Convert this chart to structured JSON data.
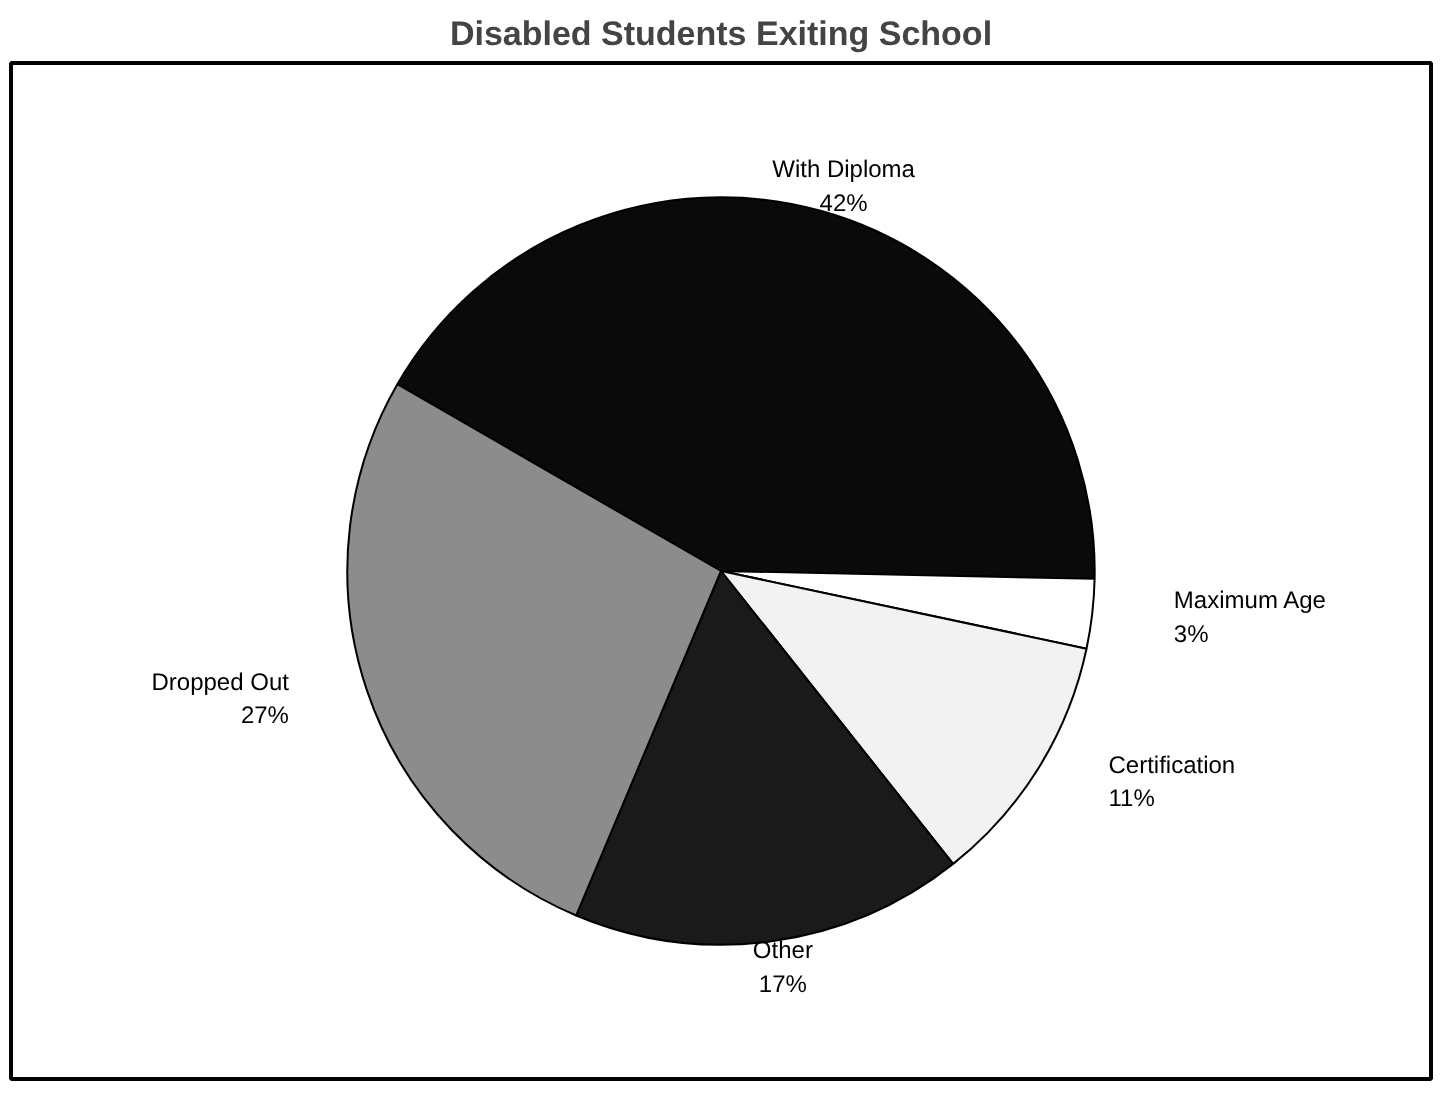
{
  "chart_data": {
    "type": "pie",
    "title": "Disabled Students Exiting School",
    "categories": [
      "With Diploma",
      "Maximum Age",
      "Certification",
      "Other",
      "Dropped Out"
    ],
    "values": [
      42,
      3,
      11,
      17,
      27
    ],
    "value_labels": [
      "42%",
      "3%",
      "11%",
      "17%",
      "27%"
    ],
    "colors": [
      "#0a0a0a",
      "#ffffff",
      "#f2f2f2",
      "#1a1a1a",
      "#8c8c8c"
    ]
  }
}
